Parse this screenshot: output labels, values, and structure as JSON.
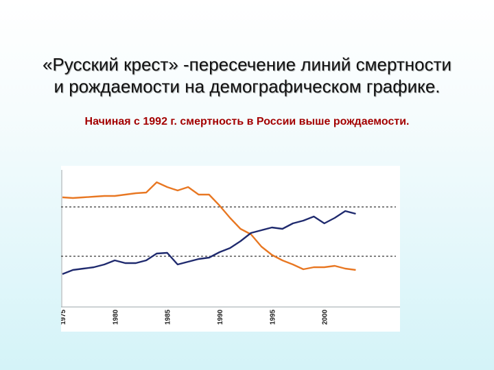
{
  "slide": {
    "title_line1": "«Русский крест» -пересечение линий смертности",
    "title_line2": "и рождаемости на демографическом графике.",
    "subtitle": "Начиная с 1992 г. смертность в России выше рождаемости."
  },
  "chart_data": {
    "type": "line",
    "title": "",
    "xlabel": "",
    "ylabel": "",
    "x_ticks": [
      "1975",
      "1980",
      "1985",
      "1990",
      "1995",
      "2000"
    ],
    "xlim": [
      1975,
      2005
    ],
    "ylim": [
      0,
      100
    ],
    "grid": false,
    "legend": "none",
    "reference_lines": [
      {
        "y": 73,
        "style": "dashed",
        "color": "#333333"
      },
      {
        "y": 37,
        "style": "dashed",
        "color": "#333333"
      }
    ],
    "series": [
      {
        "color": "#e87722",
        "x": [
          1975,
          1976,
          1977,
          1978,
          1979,
          1980,
          1981,
          1982,
          1983,
          1984,
          1985,
          1986,
          1987,
          1988,
          1989,
          1990,
          1991,
          1992,
          1993,
          1994,
          1995,
          1996,
          1997,
          1998,
          1999,
          2000,
          2001,
          2002,
          2003
        ],
        "values": [
          80,
          79.5,
          80,
          80.5,
          81,
          81,
          82,
          83,
          83.5,
          91,
          87.5,
          85,
          87.5,
          82,
          82,
          74,
          65,
          57,
          53,
          44,
          38,
          34,
          31,
          27.5,
          29,
          29,
          30,
          28,
          27
        ]
      },
      {
        "color": "#1f2a6e",
        "x": [
          1975,
          1976,
          1977,
          1978,
          1979,
          1980,
          1981,
          1982,
          1983,
          1984,
          1985,
          1986,
          1987,
          1988,
          1989,
          1990,
          1991,
          1992,
          1993,
          1994,
          1995,
          1996,
          1997,
          1998,
          1999,
          2000,
          2001,
          2002,
          2003
        ],
        "values": [
          24,
          27,
          28,
          29,
          31,
          34,
          32,
          32,
          34,
          39,
          39.5,
          31,
          33,
          35,
          36,
          40,
          43,
          48,
          54,
          56,
          58,
          57,
          61,
          63,
          66,
          61,
          65,
          70,
          68
        ]
      }
    ]
  }
}
